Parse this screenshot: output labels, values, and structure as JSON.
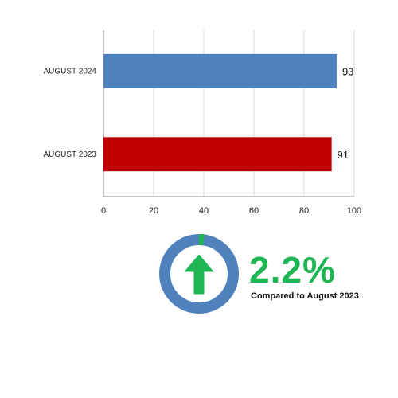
{
  "chart_data": {
    "type": "bar",
    "orientation": "horizontal",
    "categories": [
      "AUGUST 2024",
      "AUGUST 2023"
    ],
    "values": [
      93,
      91
    ],
    "xlim": [
      0,
      100
    ],
    "xticks": [
      0,
      20,
      40,
      60,
      80,
      100
    ],
    "grid": true,
    "bar_colors": [
      "#4f81bd",
      "#c00000"
    ],
    "data_labels": [
      "93",
      "91"
    ]
  },
  "summary": {
    "change_value": "2.2%",
    "change_fraction": 0.022,
    "caption": "Compared to August 2023",
    "direction": "up",
    "icon": "up-arrow-icon",
    "ring_color": "#4f81bd",
    "accent_color": "#1eb553"
  }
}
